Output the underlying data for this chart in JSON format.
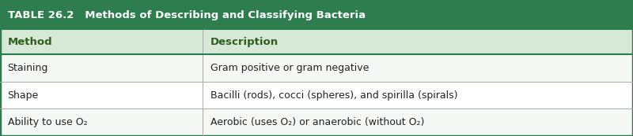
{
  "title": "TABLE 26.2   Methods of Describing and Classifying Bacteria",
  "title_bg": "#2e7d4f",
  "title_color": "#ffffff",
  "header_bg": "#d6e8d6",
  "header_color": "#2e5f1e",
  "col1_header": "Method",
  "col2_header": "Description",
  "rows": [
    [
      "Staining",
      "Gram positive or gram negative"
    ],
    [
      "Shape",
      "Bacilli (rods), cocci (spheres), and spirilla (spirals)"
    ],
    [
      "Ability to use O₂",
      "Aerobic (uses O₂) or anaerobic (without O₂)"
    ]
  ],
  "row_bg_odd": "#f5f9f5",
  "row_bg_even": "#ffffff",
  "border_color": "#2e7d4f",
  "text_color": "#222222",
  "col_split": 0.32,
  "fig_width": 8.0,
  "fig_height": 1.73,
  "dpi": 100
}
